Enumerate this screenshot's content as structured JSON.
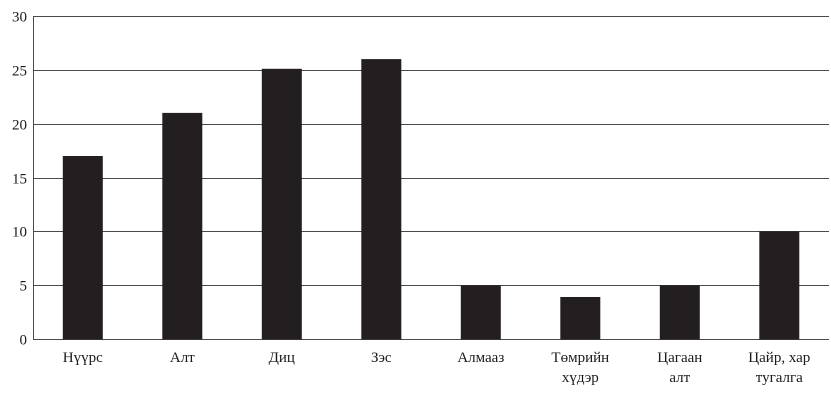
{
  "chart_data": {
    "type": "bar",
    "categories": [
      [
        "Нүүрс"
      ],
      [
        "Алт"
      ],
      [
        "Диц"
      ],
      [
        "Зэс"
      ],
      [
        "Алмааз"
      ],
      [
        "Төмрийн",
        "хүдэр"
      ],
      [
        "Цагаан",
        "алт"
      ],
      [
        "Цайр, хар",
        "тугалга"
      ]
    ],
    "values": [
      17,
      21,
      25.1,
      26,
      5,
      3.9,
      5,
      10
    ],
    "ylim": [
      0,
      30
    ],
    "yticks": [
      0,
      5,
      10,
      15,
      20,
      25,
      30
    ],
    "grid": true,
    "bar_color": "#231f20",
    "title": "",
    "xlabel": "",
    "ylabel": ""
  }
}
